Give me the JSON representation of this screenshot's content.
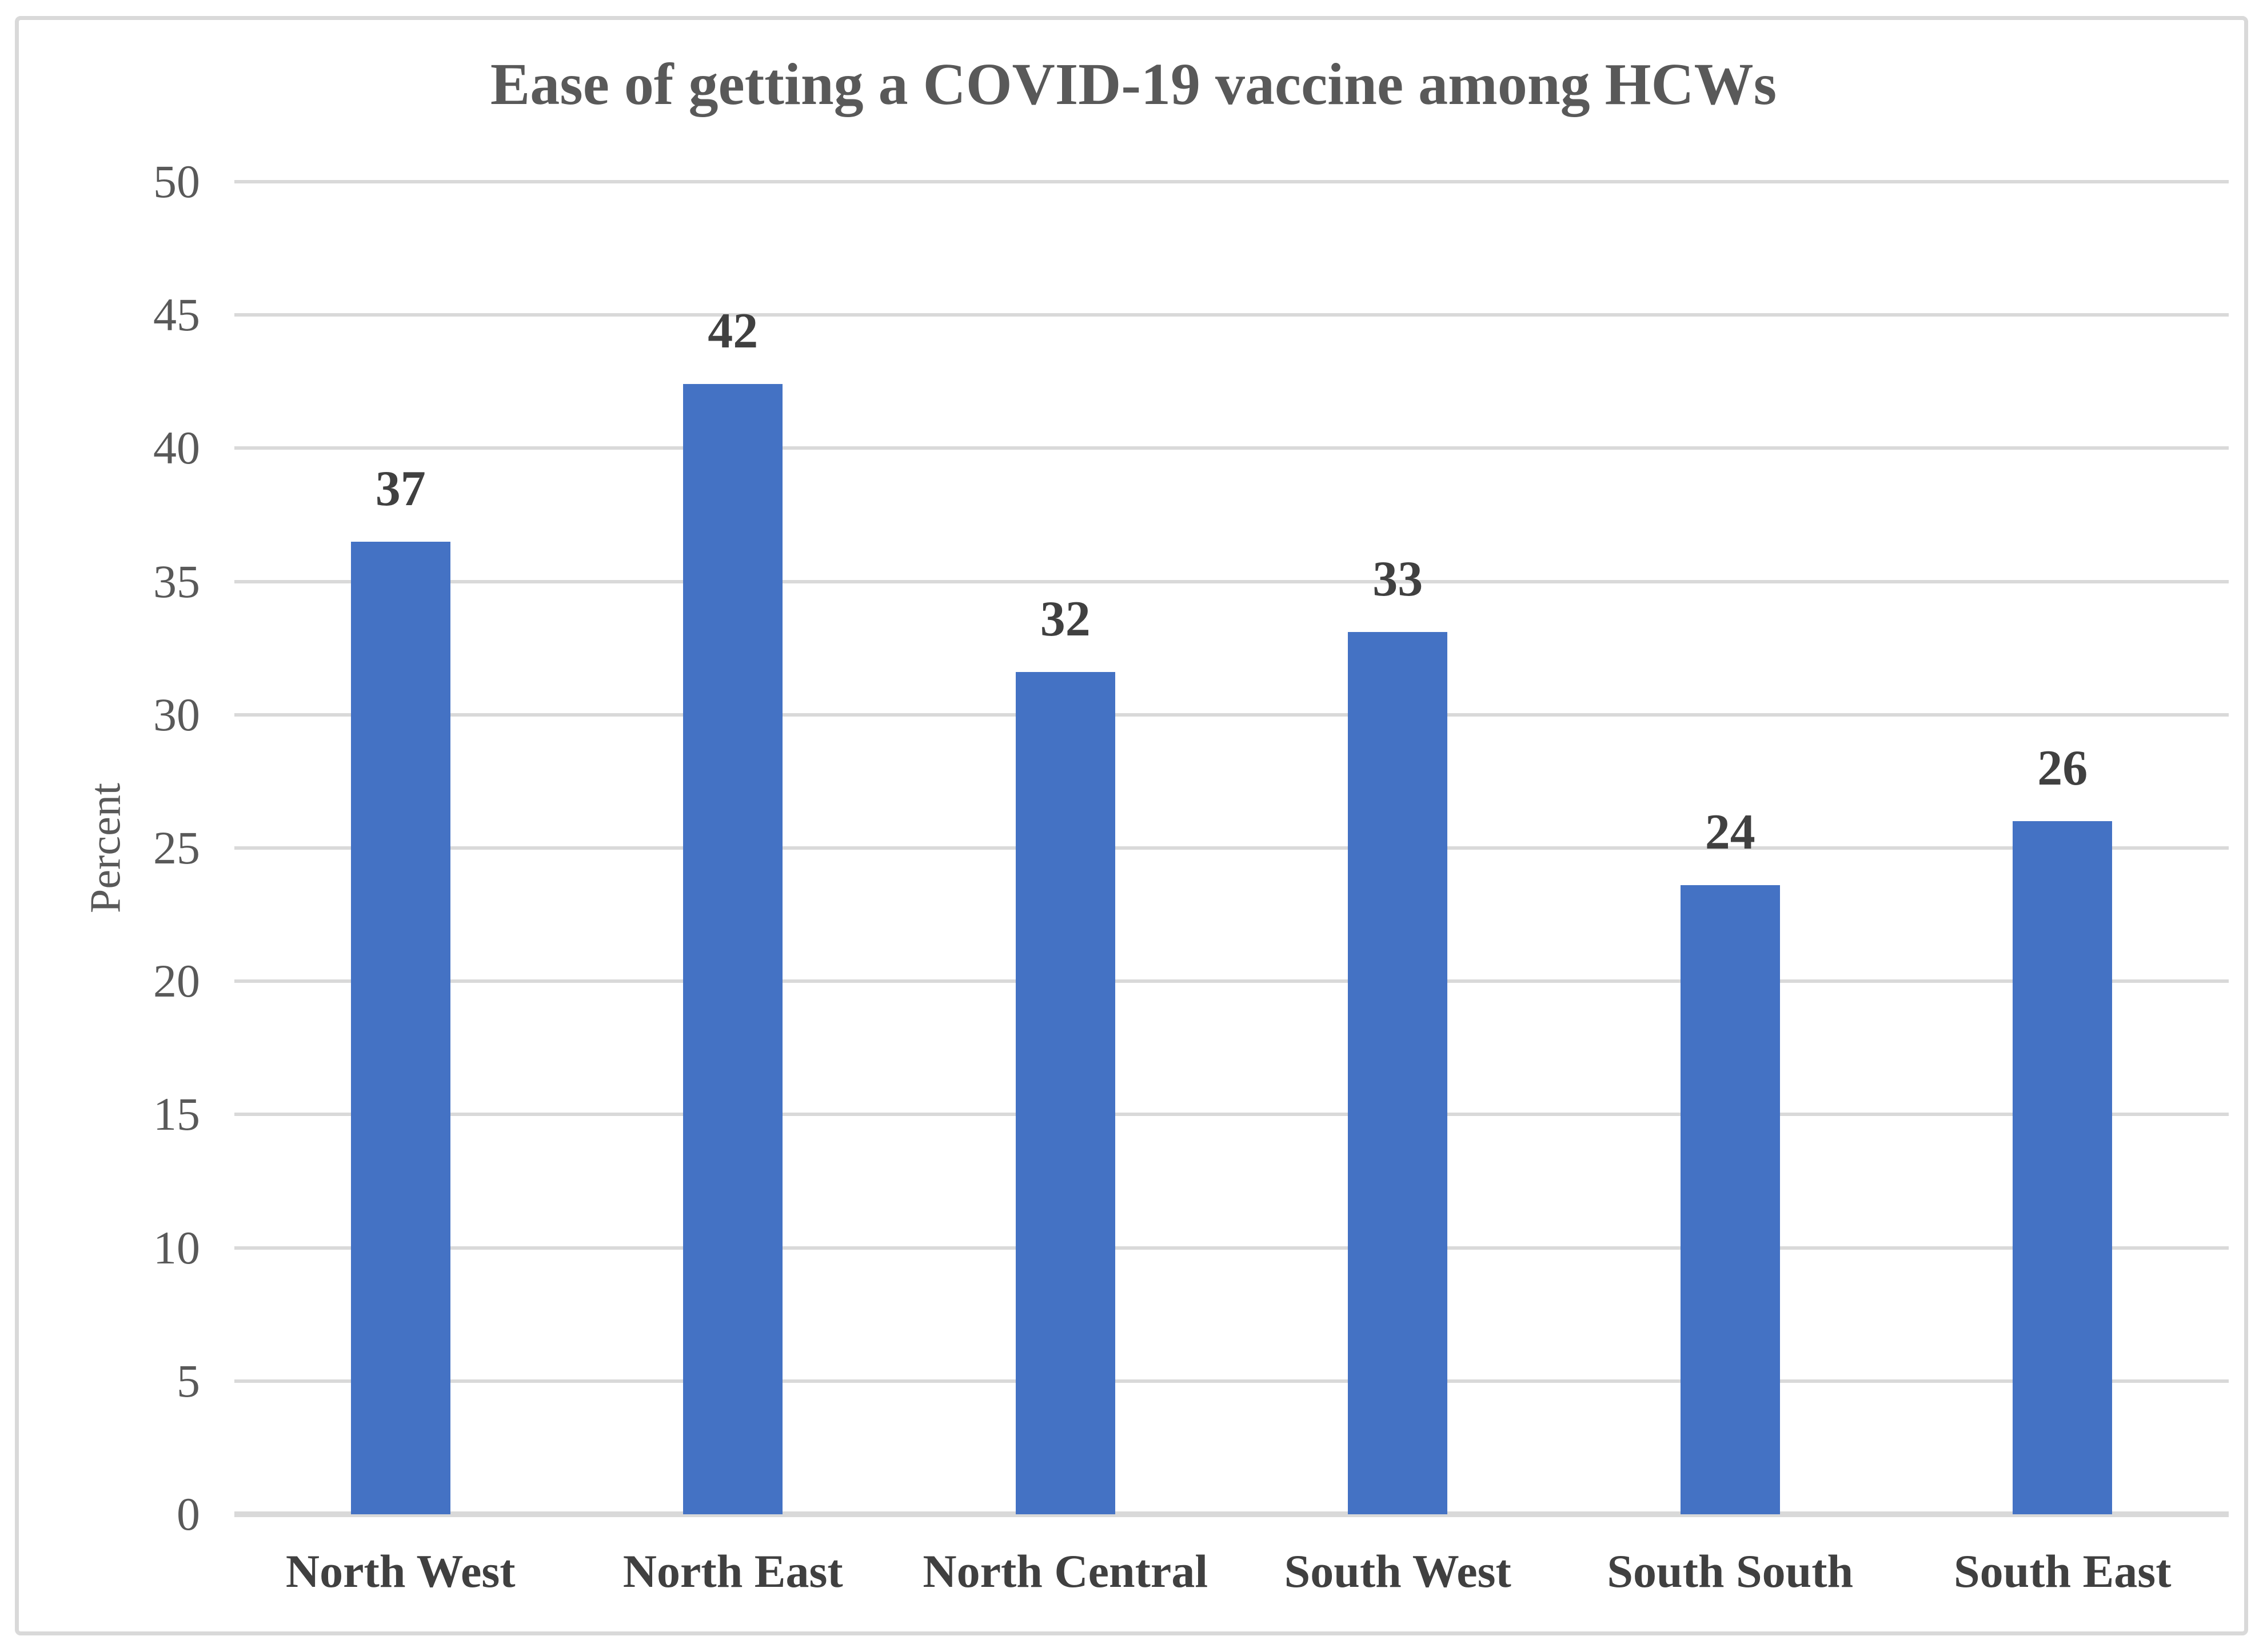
{
  "chart_data": {
    "type": "bar",
    "title": "Ease of getting a COVID-19 vaccine among HCWs",
    "ylabel": "Percent",
    "xlabel": "",
    "categories": [
      "North West",
      "North East",
      "North Central",
      "South West",
      "South South",
      "South East"
    ],
    "values": [
      37,
      42,
      32,
      33,
      24,
      26
    ],
    "data_labels": [
      "37",
      "42",
      "32",
      "33",
      "24",
      "26"
    ],
    "bar_heights_rendered": [
      36.5,
      42.4,
      31.6,
      33.1,
      23.6,
      26.0
    ],
    "ylim": [
      0,
      50
    ],
    "ytick_step": 5,
    "ytick_labels": [
      "0",
      "5",
      "10",
      "15",
      "20",
      "25",
      "30",
      "35",
      "40",
      "45",
      "50"
    ],
    "grid": true,
    "legend": false,
    "bar_color": "#4472C4",
    "gridline_color": "#D9D9D9",
    "axis_line_color": "#D9D9D9",
    "chart_border_color": "#D9D9D9",
    "background": "#FFFFFF",
    "title_color": "#595959",
    "axis_text_color": "#595959",
    "data_label_color": "#404040",
    "category_label_color": "#404040"
  }
}
